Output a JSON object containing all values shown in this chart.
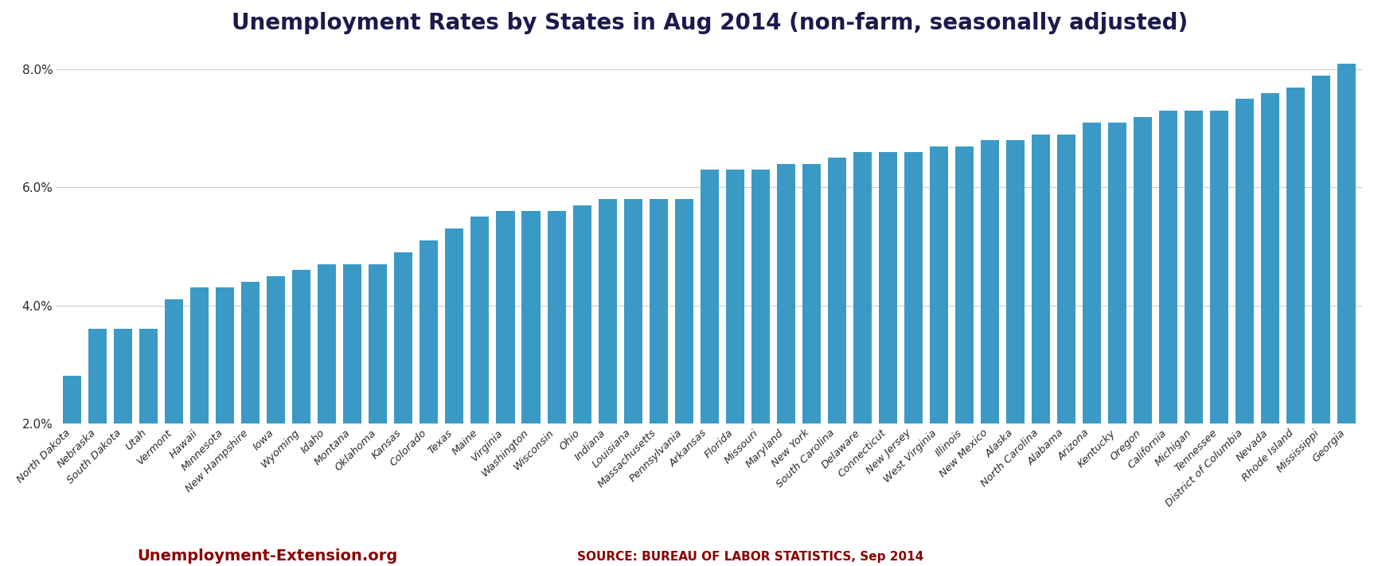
{
  "title": "Unemployment Rates by States in Aug 2014 (non-farm, seasonally adjusted)",
  "states": [
    "North Dakota",
    "Nebraska",
    "South Dakota",
    "Utah",
    "Vermont",
    "Hawaii",
    "Minnesota",
    "New Hampshire",
    "Iowa",
    "Wyoming",
    "Idaho",
    "Montana",
    "Oklahoma",
    "Kansas",
    "Colorado",
    "Texas",
    "Maine",
    "Virginia",
    "Washington",
    "Wisconsin",
    "Ohio",
    "Indiana",
    "Louisiana",
    "Massachusetts",
    "Pennsylvania",
    "Arkansas",
    "Florida",
    "Missouri",
    "Maryland",
    "New York",
    "South Carolina",
    "Delaware",
    "Connecticut",
    "New Jersey",
    "West Virginia",
    "Illinois",
    "New Mexico",
    "Alaska",
    "North Carolina",
    "Alabama",
    "Arizona",
    "Kentucky",
    "Oregon",
    "California",
    "Michigan",
    "Tennessee",
    "District of Columbia",
    "Nevada",
    "Rhode Island",
    "Mississippi",
    "Georgia"
  ],
  "values": [
    2.8,
    3.6,
    3.6,
    3.6,
    4.1,
    4.3,
    4.3,
    4.4,
    4.5,
    4.6,
    4.7,
    4.7,
    4.7,
    4.9,
    5.1,
    5.3,
    5.5,
    5.6,
    5.6,
    5.6,
    5.7,
    5.8,
    5.8,
    5.8,
    5.8,
    6.3,
    6.3,
    6.3,
    6.4,
    6.4,
    6.5,
    6.6,
    6.6,
    6.6,
    6.7,
    6.7,
    6.8,
    6.8,
    6.9,
    6.9,
    7.1,
    7.1,
    7.2,
    7.3,
    7.3,
    7.3,
    7.5,
    7.6,
    7.7,
    7.9,
    8.1
  ],
  "bar_color": "#3a9ac5",
  "background_color": "#ffffff",
  "title_color": "#1a1a4e",
  "tick_label_color": "#2a2a2a",
  "grid_color": "#cccccc",
  "source_text": "SOURCE: BUREAU OF LABOR STATISTICS, Sep 2014",
  "source_color": "#8b0000",
  "watermark_text": "Unemployment-Extension.org",
  "watermark_color": "#8b0000",
  "ylim_min": 2.0,
  "ylim_max": 8.4,
  "yticks": [
    2.0,
    4.0,
    6.0,
    8.0
  ],
  "bar_bottom": 2.0,
  "title_fontsize": 20,
  "xtick_fontsize": 9.5,
  "ytick_fontsize": 11,
  "source_fontsize": 11,
  "watermark_fontsize": 14
}
